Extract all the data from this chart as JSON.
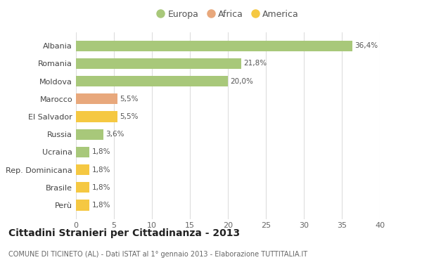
{
  "categories": [
    "Perù",
    "Brasile",
    "Rep. Dominicana",
    "Ucraina",
    "Russia",
    "El Salvador",
    "Marocco",
    "Moldova",
    "Romania",
    "Albania"
  ],
  "values": [
    1.8,
    1.8,
    1.8,
    1.8,
    3.6,
    5.5,
    5.5,
    20.0,
    21.8,
    36.4
  ],
  "colors": [
    "#f5c842",
    "#f5c842",
    "#f5c842",
    "#a8c87a",
    "#a8c87a",
    "#f5c842",
    "#e8a87c",
    "#a8c87a",
    "#a8c87a",
    "#a8c87a"
  ],
  "labels": [
    "1,8%",
    "1,8%",
    "1,8%",
    "1,8%",
    "3,6%",
    "5,5%",
    "5,5%",
    "20,0%",
    "21,8%",
    "36,4%"
  ],
  "legend": [
    {
      "label": "Europa",
      "color": "#a8c87a"
    },
    {
      "label": "Africa",
      "color": "#e8a87c"
    },
    {
      "label": "America",
      "color": "#f5c842"
    }
  ],
  "title": "Cittadini Stranieri per Cittadinanza - 2013",
  "subtitle": "COMUNE DI TICINETO (AL) - Dati ISTAT al 1° gennaio 2013 - Elaborazione TUTTITALIA.IT",
  "xlim": [
    0,
    40
  ],
  "xticks": [
    0,
    5,
    10,
    15,
    20,
    25,
    30,
    35,
    40
  ],
  "background_color": "#ffffff",
  "grid_color": "#dddddd",
  "bar_height": 0.6
}
